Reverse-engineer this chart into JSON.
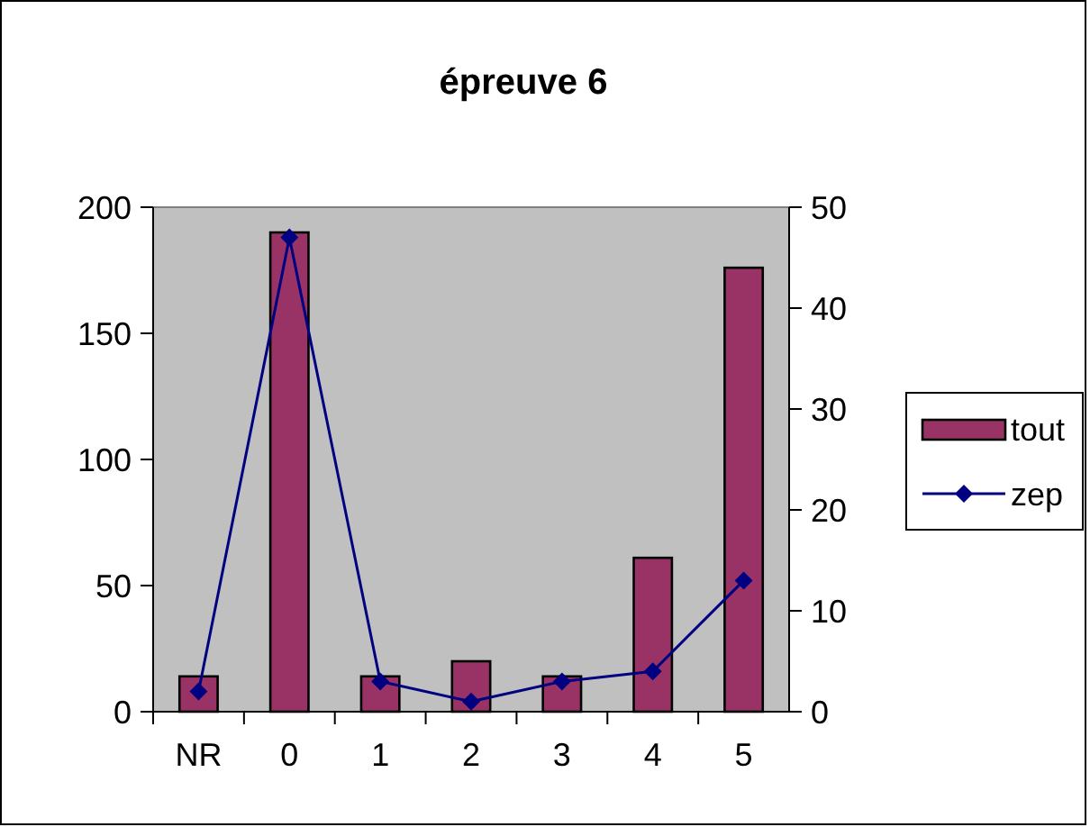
{
  "chart_data": {
    "type": "bar",
    "title": "épreuve 6",
    "categories": [
      "NR",
      "0",
      "1",
      "2",
      "3",
      "4",
      "5"
    ],
    "series": [
      {
        "name": "tout",
        "color": "#993366",
        "values": [
          14,
          190,
          14,
          20,
          14,
          61,
          176
        ]
      },
      {
        "name": "zep",
        "type": "line",
        "axis": "y2",
        "color": "#000080",
        "values": [
          2,
          47,
          3,
          1,
          3,
          4,
          13
        ]
      }
    ],
    "ylim": [
      0,
      200
    ],
    "yticks": [
      0,
      50,
      100,
      150,
      200
    ],
    "y2lim": [
      0,
      50
    ],
    "y2ticks": [
      0,
      10,
      20,
      30,
      40,
      50
    ],
    "grid": false,
    "legend": "right",
    "marker": "diamond"
  }
}
